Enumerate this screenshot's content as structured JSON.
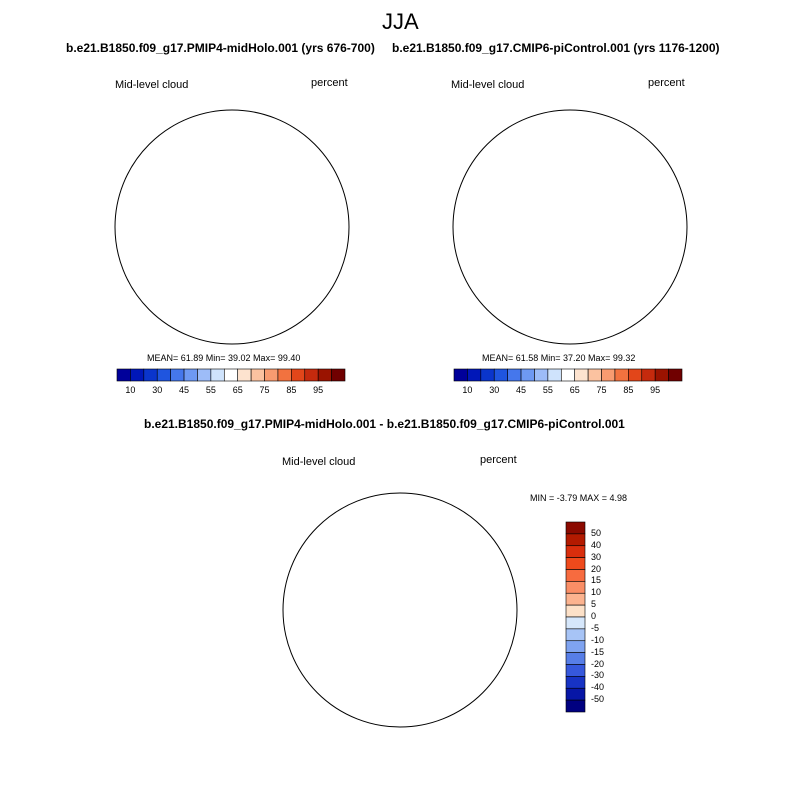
{
  "figure": {
    "title": "JJA"
  },
  "panels": [
    {
      "title": "b.e21.B1850.f09_g17.PMIP4-midHolo.001 (yrs 676-700)",
      "left_label": "Mid-level cloud",
      "right_label": "percent",
      "stats": "MEAN= 61.89  Min= 39.02  Max= 99.40"
    },
    {
      "title": "b.e21.B1850.f09_g17.CMIP6-piControl.001 (yrs 1176-1200)",
      "left_label": "Mid-level cloud",
      "right_label": "percent",
      "stats": "MEAN= 61.58  Min= 37.20  Max= 99.32"
    },
    {
      "title": "b.e21.B1850.f09_g17.PMIP4-midHolo.001 - b.e21.B1850.f09_g17.CMIP6-piControl.001",
      "left_label": "Mid-level cloud",
      "right_label": "percent",
      "stats": "MIN =  -3.79 MAX =   4.98"
    }
  ],
  "colorbar_top": {
    "labels": [
      "10",
      "30",
      "45",
      "55",
      "65",
      "75",
      "85",
      "95"
    ],
    "colors": [
      "#00009a",
      "#0017b8",
      "#0a35cc",
      "#1f55df",
      "#4577ec",
      "#6e99f3",
      "#9dbcf8",
      "#cfe3fc",
      "#ffffff",
      "#fde3cf",
      "#fbc2a0",
      "#f89b70",
      "#f2723f",
      "#e2461a",
      "#c52a0d",
      "#9a1300",
      "#700000"
    ]
  },
  "colorbar_diff": {
    "labels": [
      "50",
      "40",
      "30",
      "20",
      "15",
      "10",
      "5",
      "0",
      "-5",
      "-10",
      "-15",
      "-20",
      "-30",
      "-40",
      "-50"
    ],
    "colors": [
      "#8b0a00",
      "#b31a00",
      "#d92e0d",
      "#ef4a1c",
      "#f76b3f",
      "#fa8e66",
      "#fcb38f",
      "#fde1c8",
      "#d6e7fb",
      "#a7c4f6",
      "#7fa3f0",
      "#577ee7",
      "#3658dc",
      "#1733c4",
      "#0716a6",
      "#000080"
    ]
  }
}
